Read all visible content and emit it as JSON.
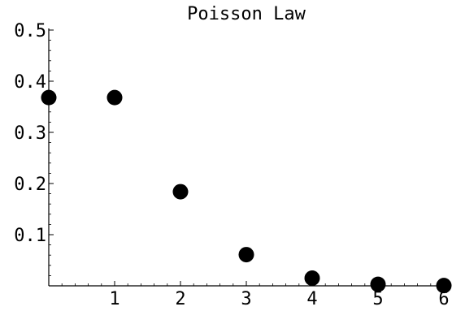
{
  "chart_data": {
    "type": "scatter",
    "title": "Poisson Law",
    "xlabel": "",
    "ylabel": "",
    "xlim": [
      0,
      6
    ],
    "ylim": [
      0,
      0.5
    ],
    "x_ticks": [
      {
        "value": 1,
        "label": "1"
      },
      {
        "value": 2,
        "label": "2"
      },
      {
        "value": 3,
        "label": "3"
      },
      {
        "value": 4,
        "label": "4"
      },
      {
        "value": 5,
        "label": "5"
      },
      {
        "value": 6,
        "label": "6"
      }
    ],
    "y_ticks": [
      {
        "value": 0.1,
        "label": "0.1"
      },
      {
        "value": 0.2,
        "label": "0.2"
      },
      {
        "value": 0.3,
        "label": "0.3"
      },
      {
        "value": 0.4,
        "label": "0.4"
      },
      {
        "value": 0.5,
        "label": "0.5"
      }
    ],
    "grid": false,
    "point_color": "#000000",
    "series": [
      {
        "points": [
          {
            "x": 0,
            "y": 0.368
          },
          {
            "x": 1,
            "y": 0.368
          },
          {
            "x": 2,
            "y": 0.184
          },
          {
            "x": 3,
            "y": 0.061
          },
          {
            "x": 4,
            "y": 0.015
          },
          {
            "x": 5,
            "y": 0.003
          },
          {
            "x": 6,
            "y": 0.0005
          }
        ]
      }
    ]
  }
}
